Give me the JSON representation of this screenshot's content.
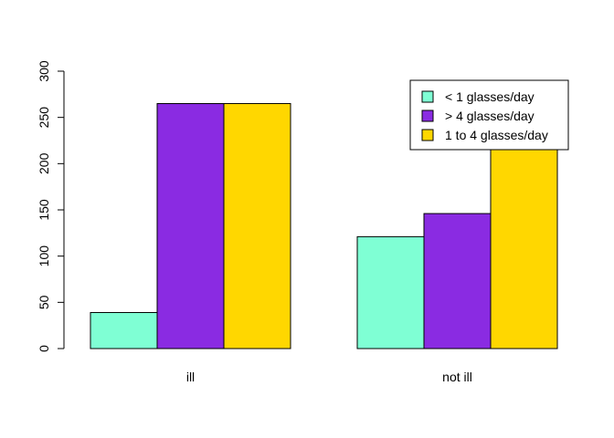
{
  "chart_data": {
    "type": "bar",
    "title": "",
    "xlabel": "",
    "ylabel": "",
    "categories": [
      "ill",
      "not ill"
    ],
    "series": [
      {
        "name": "< 1 glasses/day",
        "color": "#7FFFD4",
        "values": [
          39,
          121
        ]
      },
      {
        "name": "> 4 glasses/day",
        "color": "#8A2BE2",
        "values": [
          265,
          146
        ]
      },
      {
        "name": "1 to 4 glasses/day",
        "color": "#FFD700",
        "values": [
          265,
          220
        ]
      }
    ],
    "ylim": [
      0,
      300
    ],
    "yticks": [
      "0",
      "50",
      "100",
      "150",
      "200",
      "250",
      "300"
    ],
    "grid": false,
    "legend_position": "top-right"
  }
}
